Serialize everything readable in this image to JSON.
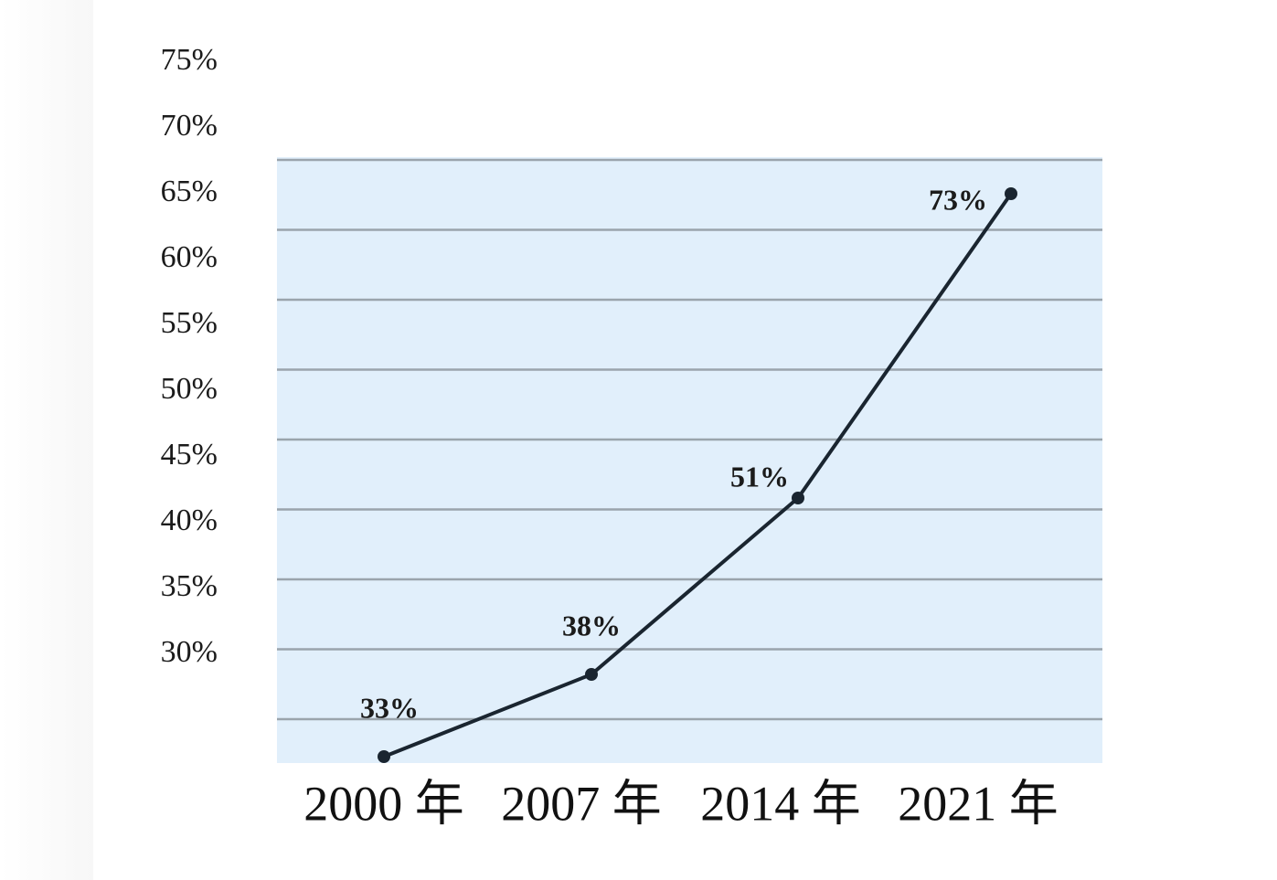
{
  "chart_data": {
    "type": "line",
    "categories": [
      "2000 年",
      "2007 年",
      "2014 年",
      "2021 年"
    ],
    "values": [
      33,
      38,
      51,
      73
    ],
    "data_labels": [
      "33%",
      "38%",
      "51%",
      "73%"
    ],
    "y_ticks": [
      "30%",
      "35%",
      "40%",
      "45%",
      "50%",
      "55%",
      "60%",
      "65%",
      "70%",
      "75%"
    ],
    "title": "",
    "xlabel": "",
    "ylabel": "",
    "grid": true,
    "legend": "none",
    "colors": {
      "plot_bg": "#e1effb",
      "gridline": "#9aa4ac",
      "line": "#1a2530",
      "text": "#1b1b1b"
    }
  }
}
